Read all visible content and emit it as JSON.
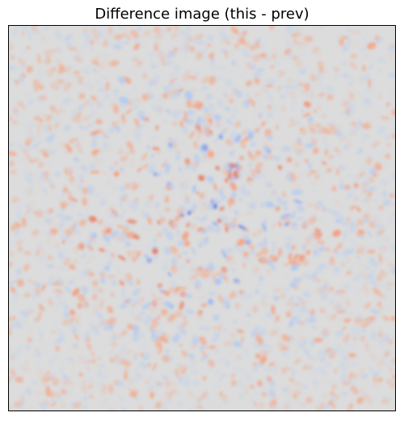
{
  "figure": {
    "title": "Difference image (this - prev)"
  },
  "colormap": {
    "name": "coolwarm",
    "neutral": "#dcdcdc",
    "warm": "#f4a583",
    "warm_strong": "#d03c2a",
    "cool": "#a9c6f5",
    "cool_strong": "#3b5fe0"
  }
}
